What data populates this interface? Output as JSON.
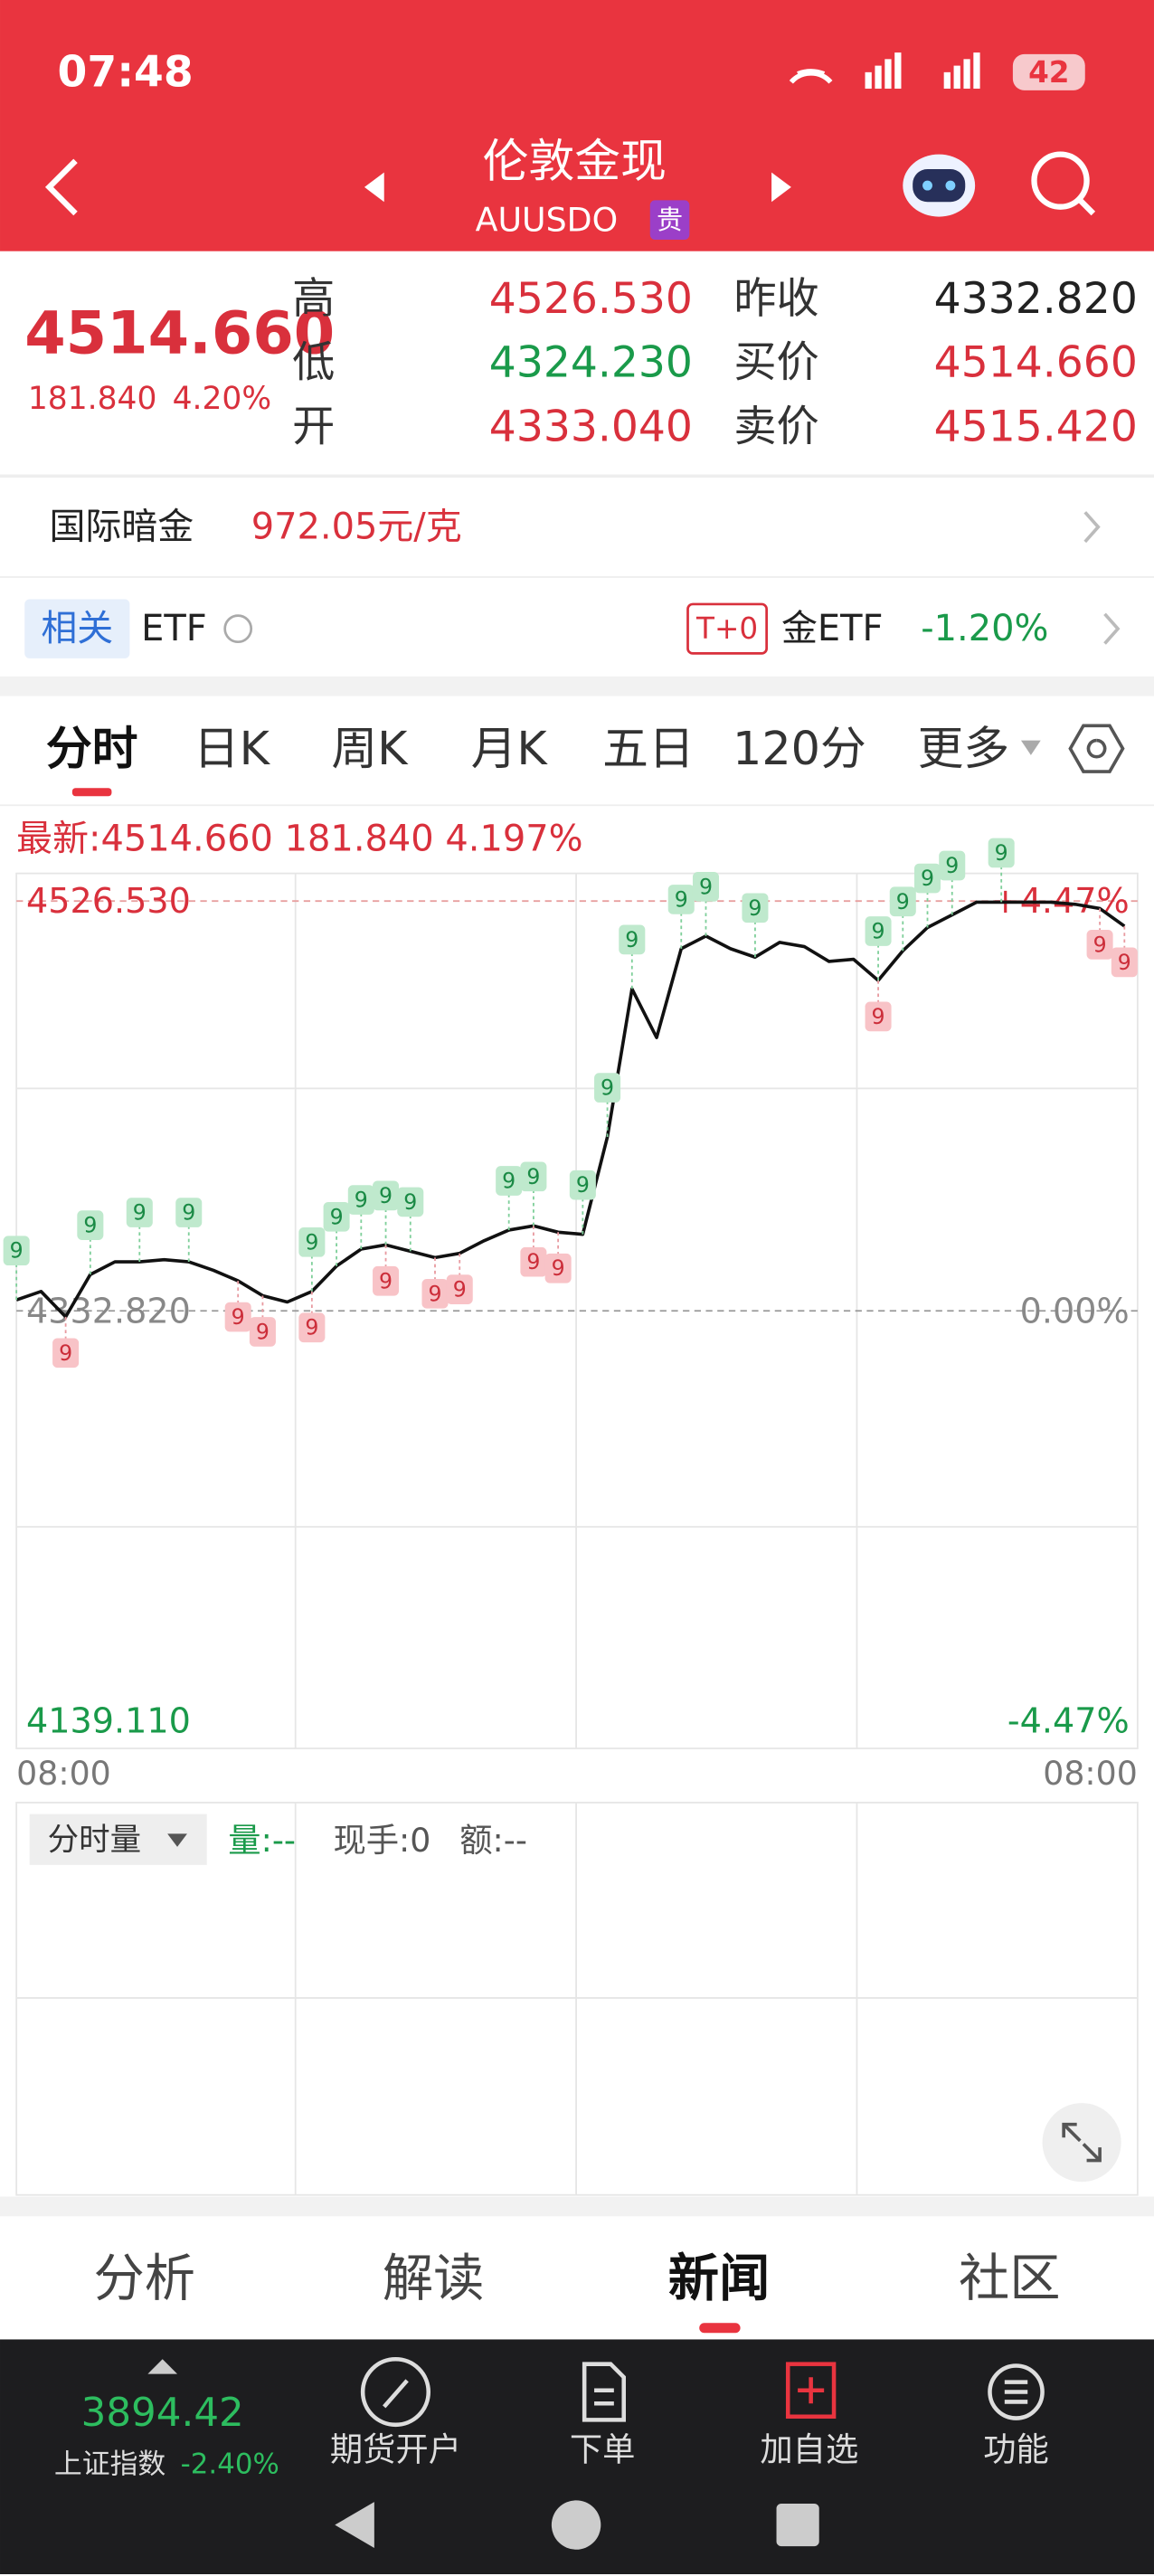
{
  "status_bar": {
    "time": "07:48",
    "battery": "42"
  },
  "header": {
    "title": "伦敦金现",
    "code": "AUUSDO",
    "badge": "贵"
  },
  "quote": {
    "price": "4514.660",
    "change": "181.840",
    "change_pct": "4.20%",
    "rows": [
      [
        "高",
        "4526.530",
        "昨收",
        "4332.820"
      ],
      [
        "低",
        "4324.230",
        "买价",
        "4514.660"
      ],
      [
        "开",
        "4333.040",
        "卖价",
        "4515.420"
      ]
    ]
  },
  "dark_gold": {
    "label": "国际暗金",
    "value": "972.05元/克"
  },
  "etf_row": {
    "tag": "相关",
    "label": "ETF",
    "badge": "T+0",
    "name": "金ETF",
    "change": "-1.20%"
  },
  "period_tabs": [
    "分时",
    "日K",
    "周K",
    "月K",
    "五日",
    "120分",
    "更多"
  ],
  "chart_data": {
    "type": "line",
    "latest": "最新:4514.660 181.840 4.197%",
    "color": "#111111",
    "ylim": [
      4126.0,
      4539.6
    ],
    "yticks": [
      {
        "value": 4526.53,
        "label": "4526.530"
      },
      {
        "value": 4332.82,
        "label": "4332.820"
      },
      {
        "value": 4139.11,
        "label": "4139.110"
      }
    ],
    "y2lim": [
      -4.773,
      4.772
    ],
    "y2ticks": [
      {
        "value": 4.47,
        "label": "+4.47%"
      },
      {
        "value": 0,
        "label": "0.00%"
      },
      {
        "value": -4.47,
        "label": "-4.47%"
      }
    ],
    "x_labels": [
      "08:00",
      "08:00"
    ],
    "values": [
      4338,
      4342,
      4330,
      4350,
      4356,
      4356,
      4357,
      4356,
      4352,
      4347,
      4340,
      4337,
      4342,
      4354,
      4362,
      4364,
      4361,
      4358,
      4360,
      4366,
      4371,
      4373,
      4370,
      4369,
      4415,
      4485,
      4462,
      4504,
      4510,
      4504,
      4500,
      4507,
      4505,
      4498,
      4499,
      4489,
      4503,
      4514,
      4520,
      4526,
      4526,
      4526,
      4526,
      4525,
      4523,
      4514.66
    ],
    "signals": [
      {
        "index": 0,
        "side": "buy",
        "label": "9"
      },
      {
        "index": 3,
        "side": "buy",
        "label": "9"
      },
      {
        "index": 5,
        "side": "buy",
        "label": "9"
      },
      {
        "index": 7,
        "side": "buy",
        "label": "9"
      },
      {
        "index": 12,
        "side": "buy",
        "label": "9"
      },
      {
        "index": 13,
        "side": "buy",
        "label": "9"
      },
      {
        "index": 14,
        "side": "buy",
        "label": "9"
      },
      {
        "index": 15,
        "side": "buy",
        "label": "9"
      },
      {
        "index": 16,
        "side": "buy",
        "label": "9"
      },
      {
        "index": 20,
        "side": "buy",
        "label": "9"
      },
      {
        "index": 21,
        "side": "buy",
        "label": "9"
      },
      {
        "index": 23,
        "side": "buy",
        "label": "9"
      },
      {
        "index": 24,
        "side": "buy",
        "label": "9"
      },
      {
        "index": 25,
        "side": "buy",
        "label": "9"
      },
      {
        "index": 27,
        "side": "buy",
        "label": "9"
      },
      {
        "index": 28,
        "side": "buy",
        "label": "9"
      },
      {
        "index": 30,
        "side": "buy",
        "label": "9"
      },
      {
        "index": 35,
        "side": "buy",
        "label": "9"
      },
      {
        "index": 36,
        "side": "buy",
        "label": "9"
      },
      {
        "index": 37,
        "side": "buy",
        "label": "9"
      },
      {
        "index": 38,
        "side": "buy",
        "label": "9"
      },
      {
        "index": 40,
        "side": "buy",
        "label": "9"
      },
      {
        "index": 2,
        "side": "sell",
        "label": "9"
      },
      {
        "index": 9,
        "side": "sell",
        "label": "9"
      },
      {
        "index": 10,
        "side": "sell",
        "label": "9"
      },
      {
        "index": 12,
        "side": "sell",
        "label": "9"
      },
      {
        "index": 15,
        "side": "sell",
        "label": "9"
      },
      {
        "index": 17,
        "side": "sell",
        "label": "9"
      },
      {
        "index": 18,
        "side": "sell",
        "label": "9"
      },
      {
        "index": 21,
        "side": "sell",
        "label": "9"
      },
      {
        "index": 22,
        "side": "sell",
        "label": "9"
      },
      {
        "index": 35,
        "side": "sell",
        "label": "9"
      },
      {
        "index": 44,
        "side": "sell",
        "label": "9"
      },
      {
        "index": 45,
        "side": "sell",
        "label": "9"
      }
    ]
  },
  "volume_panel": {
    "selector": "分时量",
    "volume": "量:--",
    "current": "现手:0",
    "amount": "额:--"
  },
  "content_tabs": [
    "分析",
    "解读",
    "新闻",
    "社区"
  ],
  "bottom_bar": {
    "index_value": "3894.42",
    "index_name": "上证指数",
    "index_change": "-2.40%",
    "buttons": [
      "期货开户",
      "下单",
      "加自选",
      "功能"
    ]
  }
}
